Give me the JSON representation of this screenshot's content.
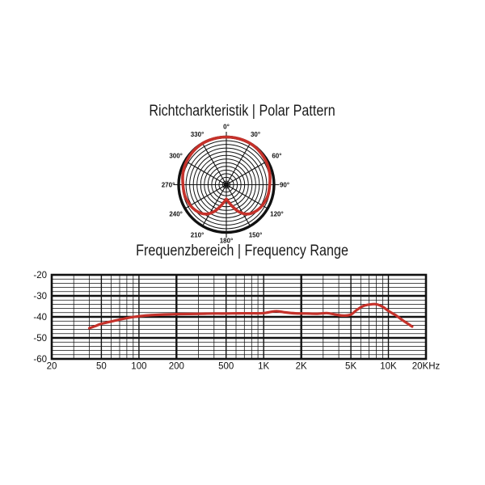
{
  "page": {
    "background": "#ffffff",
    "line_color": "#111111",
    "accent_red": "#c5312a"
  },
  "chart_data": [
    {
      "type": "polar",
      "title": "Richtcharkteristik | Polar Pattern",
      "pattern_name": "cardioid",
      "curve_color": "#c5312a",
      "grid_color": "#111111",
      "rings": 13,
      "spoke_step_deg": 30,
      "angle_labels": [
        "0°",
        "30°",
        "60°",
        "90°",
        "120°",
        "150°",
        "180°",
        "210°",
        "240°",
        "270°",
        "300°",
        "330°"
      ],
      "points_deg_radiusfrac": [
        [
          180,
          0.3
        ],
        [
          172,
          0.37
        ],
        [
          164,
          0.48
        ],
        [
          156,
          0.61
        ],
        [
          148,
          0.72
        ],
        [
          140,
          0.79
        ],
        [
          130,
          0.84
        ],
        [
          120,
          0.87
        ],
        [
          105,
          0.9
        ],
        [
          90,
          0.91
        ],
        [
          75,
          0.94
        ],
        [
          60,
          0.965
        ],
        [
          45,
          0.985
        ],
        [
          30,
          1.0
        ],
        [
          15,
          1.0
        ],
        [
          0,
          1.0
        ],
        [
          -15,
          1.0
        ],
        [
          -30,
          1.0
        ],
        [
          -45,
          0.985
        ],
        [
          -60,
          0.965
        ],
        [
          -75,
          0.94
        ],
        [
          -90,
          0.91
        ],
        [
          -105,
          0.9
        ],
        [
          -120,
          0.87
        ],
        [
          -130,
          0.84
        ],
        [
          -140,
          0.79
        ],
        [
          -148,
          0.72
        ],
        [
          -156,
          0.61
        ],
        [
          -164,
          0.48
        ],
        [
          -172,
          0.37
        ],
        [
          -180,
          0.3
        ]
      ]
    },
    {
      "type": "line",
      "title": "Frequenzbereich | Frequency Range",
      "x_scale": "log",
      "xlim": [
        20,
        20000
      ],
      "ylim": [
        -60,
        -20
      ],
      "grid": "on",
      "curve_color": "#c5312a",
      "grid_color": "#111111",
      "x_tick_values": [
        20,
        50,
        100,
        200,
        500,
        1000,
        2000,
        5000,
        10000,
        20000
      ],
      "x_tick_labels": [
        "20",
        "50",
        "100",
        "200",
        "500",
        "1K",
        "2K",
        "5K",
        "10K",
        "20KHz"
      ],
      "y_ticks": [
        -20,
        -30,
        -40,
        -50,
        -60
      ],
      "y_tick_labels": [
        "-20",
        "-30",
        "-40",
        "-50",
        "-60"
      ],
      "y_minor_step_db": 2,
      "points_hz_db": [
        [
          40,
          -45.4
        ],
        [
          45,
          -44.3
        ],
        [
          50,
          -43.3
        ],
        [
          63,
          -41.9
        ],
        [
          80,
          -40.6
        ],
        [
          100,
          -39.7
        ],
        [
          125,
          -39.2
        ],
        [
          160,
          -38.9
        ],
        [
          200,
          -38.7
        ],
        [
          250,
          -38.6
        ],
        [
          315,
          -38.5
        ],
        [
          400,
          -38.4
        ],
        [
          500,
          -38.4
        ],
        [
          630,
          -38.3
        ],
        [
          800,
          -38.3
        ],
        [
          1000,
          -38.2
        ],
        [
          1250,
          -37.3
        ],
        [
          1500,
          -37.9
        ],
        [
          1800,
          -38.3
        ],
        [
          2200,
          -38.4
        ],
        [
          2700,
          -38.5
        ],
        [
          3200,
          -38.2
        ],
        [
          3700,
          -38.8
        ],
        [
          4300,
          -39.4
        ],
        [
          5000,
          -38.9
        ],
        [
          5600,
          -36.6
        ],
        [
          6300,
          -34.8
        ],
        [
          7100,
          -34.1
        ],
        [
          8000,
          -34.0
        ],
        [
          9000,
          -35.2
        ],
        [
          10000,
          -37.2
        ],
        [
          11500,
          -39.3
        ],
        [
          13000,
          -41.6
        ],
        [
          15500,
          -44.6
        ]
      ]
    }
  ]
}
